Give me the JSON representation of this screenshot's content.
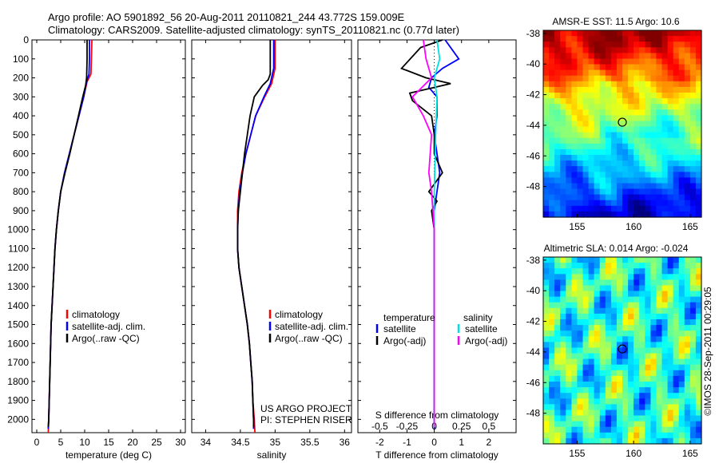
{
  "header": {
    "line1": "Argo profile: AO 5901892_56 20-Aug-2011 20110821_244 43.772S 159.009E",
    "line2": "Climatology: CARS2009. Satellite-adjusted climatology: synTS_20110821.nc (0.77d later)"
  },
  "credit": "©IMOS 28-Sep-2011 00:29:05",
  "colors": {
    "climatology": "#ff0000",
    "satellite": "#0000ff",
    "argo": "#000000",
    "salinity_sat": "#00e0e0",
    "salinity_argo": "#ff00ff"
  },
  "chart_data": [
    {
      "type": "line",
      "id": "temperature",
      "xlabel": "temperature (deg C)",
      "xlim": [
        -1,
        31
      ],
      "ylim": [
        2070,
        0
      ],
      "xticks": [
        0,
        5,
        10,
        15,
        20,
        25,
        30
      ],
      "yticks": [
        0,
        100,
        200,
        300,
        400,
        500,
        600,
        700,
        800,
        900,
        1000,
        1100,
        1200,
        1300,
        1400,
        1500,
        1600,
        1700,
        1800,
        1900,
        2000
      ],
      "legend": [
        "climatology",
        "satellite-adj. clim.",
        "Argo(..raw -QC)"
      ],
      "series": [
        {
          "name": "climatology",
          "color": "#ff0000",
          "points": [
            [
              11.5,
              0
            ],
            [
              11.4,
              100
            ],
            [
              11.3,
              180
            ],
            [
              10.5,
              220
            ],
            [
              9.8,
              300
            ],
            [
              8.8,
              400
            ],
            [
              7.8,
              500
            ],
            [
              6.8,
              600
            ],
            [
              5.8,
              700
            ],
            [
              5.0,
              800
            ],
            [
              4.5,
              900
            ],
            [
              4.1,
              1000
            ],
            [
              3.8,
              1100
            ],
            [
              3.6,
              1200
            ],
            [
              3.4,
              1300
            ],
            [
              3.2,
              1400
            ],
            [
              3.0,
              1500
            ],
            [
              2.9,
              1600
            ],
            [
              2.8,
              1700
            ],
            [
              2.7,
              1800
            ],
            [
              2.6,
              1900
            ],
            [
              2.5,
              2000
            ],
            [
              2.4,
              2070
            ]
          ]
        },
        {
          "name": "satellite-adj. clim.",
          "color": "#0000ff",
          "points": [
            [
              11.0,
              0
            ],
            [
              11.0,
              100
            ],
            [
              10.9,
              180
            ],
            [
              10.4,
              220
            ],
            [
              9.8,
              300
            ],
            [
              8.8,
              400
            ],
            [
              7.8,
              500
            ],
            [
              6.8,
              600
            ],
            [
              5.8,
              700
            ],
            [
              5.0,
              800
            ],
            [
              4.5,
              900
            ],
            [
              4.1,
              1000
            ],
            [
              3.8,
              1100
            ],
            [
              3.6,
              1200
            ],
            [
              3.4,
              1300
            ],
            [
              3.2,
              1400
            ],
            [
              3.0,
              1500
            ],
            [
              2.9,
              1600
            ],
            [
              2.8,
              1700
            ],
            [
              2.7,
              1800
            ],
            [
              2.6,
              1900
            ],
            [
              2.5,
              2000
            ],
            [
              2.4,
              2050
            ]
          ]
        },
        {
          "name": "Argo(..raw -QC)",
          "color": "#000000",
          "points": [
            [
              10.5,
              0
            ],
            [
              10.5,
              100
            ],
            [
              10.4,
              200
            ],
            [
              10.2,
              240
            ],
            [
              9.6,
              300
            ],
            [
              8.7,
              400
            ],
            [
              7.8,
              500
            ],
            [
              6.9,
              600
            ],
            [
              5.9,
              700
            ],
            [
              5.0,
              800
            ],
            [
              4.5,
              900
            ],
            [
              4.1,
              1000
            ],
            [
              3.8,
              1100
            ],
            [
              3.6,
              1200
            ],
            [
              3.4,
              1300
            ],
            [
              3.2,
              1400
            ],
            [
              3.0,
              1500
            ],
            [
              2.9,
              1600
            ],
            [
              2.8,
              1700
            ],
            [
              2.7,
              1800
            ],
            [
              2.6,
              1900
            ],
            [
              2.5,
              2000
            ],
            [
              2.4,
              2040
            ]
          ]
        }
      ]
    },
    {
      "type": "line",
      "id": "salinity",
      "xlabel": "salinity",
      "xlim": [
        33.8,
        36.1
      ],
      "ylim": [
        2070,
        0
      ],
      "xticks": [
        34,
        34.5,
        35,
        35.5,
        36
      ],
      "xticklabels": [
        "34",
        "34.5",
        "35",
        "35.5",
        "36"
      ],
      "legend": [
        "climatology",
        "satellite-adj. clim.",
        "Argo(..raw -QC)"
      ],
      "annotation": [
        "US ARGO PROJECT",
        "PI: STEPHEN RISER"
      ],
      "series": [
        {
          "name": "climatology",
          "color": "#ff0000",
          "points": [
            [
              35.0,
              0
            ],
            [
              35.0,
              150
            ],
            [
              34.95,
              230
            ],
            [
              34.85,
              300
            ],
            [
              34.72,
              400
            ],
            [
              34.65,
              500
            ],
            [
              34.58,
              600
            ],
            [
              34.52,
              700
            ],
            [
              34.48,
              800
            ],
            [
              34.46,
              900
            ],
            [
              34.46,
              1000
            ],
            [
              34.46,
              1100
            ],
            [
              34.48,
              1200
            ],
            [
              34.52,
              1300
            ],
            [
              34.56,
              1400
            ],
            [
              34.6,
              1500
            ],
            [
              34.63,
              1600
            ],
            [
              34.65,
              1700
            ],
            [
              34.67,
              1800
            ],
            [
              34.68,
              1900
            ],
            [
              34.7,
              2000
            ],
            [
              34.71,
              2070
            ]
          ]
        },
        {
          "name": "satellite-adj. clim.",
          "color": "#0000ff",
          "points": [
            [
              34.98,
              0
            ],
            [
              34.98,
              150
            ],
            [
              34.93,
              230
            ],
            [
              34.84,
              300
            ],
            [
              34.72,
              400
            ],
            [
              34.65,
              500
            ],
            [
              34.58,
              600
            ],
            [
              34.53,
              700
            ],
            [
              34.49,
              800
            ],
            [
              34.47,
              900
            ],
            [
              34.46,
              1000
            ],
            [
              34.46,
              1100
            ],
            [
              34.48,
              1200
            ],
            [
              34.52,
              1300
            ],
            [
              34.56,
              1400
            ],
            [
              34.6,
              1500
            ],
            [
              34.63,
              1600
            ],
            [
              34.65,
              1700
            ],
            [
              34.67,
              1800
            ],
            [
              34.68,
              1900
            ],
            [
              34.69,
              2000
            ],
            [
              34.69,
              2050
            ]
          ]
        },
        {
          "name": "Argo(..raw -QC)",
          "color": "#000000",
          "points": [
            [
              34.93,
              0
            ],
            [
              34.93,
              180
            ],
            [
              34.9,
              210
            ],
            [
              34.82,
              240
            ],
            [
              34.7,
              300
            ],
            [
              34.64,
              400
            ],
            [
              34.6,
              500
            ],
            [
              34.56,
              600
            ],
            [
              34.53,
              700
            ],
            [
              34.5,
              800
            ],
            [
              34.47,
              900
            ],
            [
              34.46,
              1000
            ],
            [
              34.46,
              1100
            ],
            [
              34.48,
              1200
            ],
            [
              34.52,
              1300
            ],
            [
              34.56,
              1400
            ],
            [
              34.6,
              1500
            ],
            [
              34.63,
              1600
            ],
            [
              34.65,
              1700
            ],
            [
              34.67,
              1800
            ],
            [
              34.68,
              1900
            ],
            [
              34.69,
              2000
            ],
            [
              34.69,
              2040
            ]
          ]
        }
      ]
    },
    {
      "type": "line",
      "id": "differences",
      "xlabel": "T difference from climatology",
      "toplabel": "S difference from climatology",
      "xlim": [
        -2.8,
        3.0
      ],
      "ylim": [
        2070,
        0
      ],
      "xticks": [
        -2,
        -1,
        0,
        1,
        2
      ],
      "top_ticks": [
        -0.5,
        -0.25,
        0,
        0.25,
        0.5
      ],
      "top_ticklabels": [
        "-0.5",
        "-0.25",
        "0",
        "0.25",
        "0.5"
      ],
      "legend_temperature": {
        "title": "temperature",
        "items": [
          "satellite",
          "Argo(-adj)"
        ]
      },
      "legend_salinity": {
        "title": "salinity",
        "items": [
          "satellite",
          "Argo(-adj)"
        ]
      },
      "series": [
        {
          "name": "temperature satellite",
          "color": "#0000ff",
          "points": [
            [
              0.4,
              0
            ],
            [
              0.7,
              60
            ],
            [
              0.9,
              100
            ],
            [
              0.3,
              150
            ],
            [
              -0.1,
              200
            ],
            [
              -0.2,
              250
            ],
            [
              0.1,
              300
            ],
            [
              0.1,
              400
            ],
            [
              0.0,
              500
            ],
            [
              0.1,
              600
            ],
            [
              0.2,
              700
            ],
            [
              0.1,
              800
            ],
            [
              0.0,
              900
            ],
            [
              0.0,
              1000
            ],
            [
              0.0,
              1100
            ],
            [
              0.0,
              1500
            ],
            [
              0.0,
              2050
            ]
          ]
        },
        {
          "name": "temperature Argo(-adj)",
          "color": "#000000",
          "points": [
            [
              0.3,
              0
            ],
            [
              -0.5,
              40
            ],
            [
              -1.2,
              150
            ],
            [
              -0.3,
              200
            ],
            [
              0.6,
              230
            ],
            [
              -0.9,
              280
            ],
            [
              -0.8,
              320
            ],
            [
              -0.1,
              400
            ],
            [
              0.0,
              500
            ],
            [
              0.0,
              600
            ],
            [
              0.3,
              700
            ],
            [
              -0.2,
              800
            ],
            [
              0.1,
              850
            ],
            [
              -0.1,
              900
            ],
            [
              0.0,
              1000
            ],
            [
              0.0,
              1100
            ],
            [
              0.0,
              2040
            ]
          ]
        },
        {
          "name": "salinity satellite",
          "color": "#00e0e0",
          "points": [
            [
              0.1,
              0
            ],
            [
              0.2,
              100
            ],
            [
              0.0,
              200
            ],
            [
              0.1,
              300
            ],
            [
              0.05,
              500
            ],
            [
              0.0,
              800
            ],
            [
              0.0,
              2040
            ]
          ]
        },
        {
          "name": "salinity Argo(-adj)",
          "color": "#ff00ff",
          "points": [
            [
              -0.4,
              0
            ],
            [
              -0.3,
              100
            ],
            [
              -0.1,
              200
            ],
            [
              -0.8,
              300
            ],
            [
              -0.4,
              400
            ],
            [
              -0.1,
              500
            ],
            [
              -0.2,
              700
            ],
            [
              -0.1,
              800
            ],
            [
              0.0,
              1000
            ],
            [
              0.0,
              2040
            ]
          ]
        }
      ]
    },
    {
      "type": "heatmap",
      "id": "sst",
      "title": "AMSR-E SST: 11.5 Argo: 10.6",
      "xlim": [
        152,
        166
      ],
      "ylim": [
        -50,
        -37.8
      ],
      "xticks": [
        155,
        160,
        165
      ],
      "yticks": [
        -38,
        -40,
        -42,
        -44,
        -46,
        -48
      ],
      "marker": {
        "lon": 159.0,
        "lat": -43.8
      }
    },
    {
      "type": "heatmap",
      "id": "sla",
      "title": "Altimetric SLA: 0.014 Argo: -0.024",
      "xlim": [
        152,
        166
      ],
      "ylim": [
        -50,
        -37.8
      ],
      "xticks": [
        155,
        160,
        165
      ],
      "yticks": [
        -38,
        -40,
        -42,
        -44,
        -46,
        -48
      ],
      "marker": {
        "lon": 159.0,
        "lat": -43.8
      }
    }
  ]
}
